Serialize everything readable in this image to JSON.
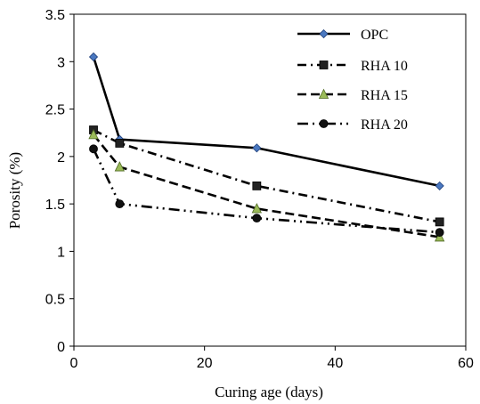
{
  "chart_data": {
    "type": "line",
    "xlabel": "Curing age (days)",
    "ylabel": "Porosity (%)",
    "xlim": [
      0,
      60
    ],
    "ylim": [
      0,
      3.5
    ],
    "x_ticks": [
      "0",
      "20",
      "40",
      "60"
    ],
    "y_ticks": [
      "0",
      "0.5",
      "1",
      "1.5",
      "2",
      "2.5",
      "3",
      "3.5"
    ],
    "grid": false,
    "legend_position": "top-right",
    "series": [
      {
        "name": "OPC",
        "x": [
          3,
          7,
          28,
          56
        ],
        "y": [
          3.05,
          2.18,
          2.09,
          1.69
        ],
        "marker": "diamond",
        "dash": "solid",
        "marker_color": "#4a78c0"
      },
      {
        "name": "RHA 10",
        "x": [
          3,
          7,
          28,
          56
        ],
        "y": [
          2.28,
          2.14,
          1.69,
          1.31
        ],
        "marker": "square",
        "dash": "dashdot",
        "marker_color": "#222222"
      },
      {
        "name": "RHA 15",
        "x": [
          3,
          7,
          28,
          56
        ],
        "y": [
          2.23,
          1.89,
          1.45,
          1.15
        ],
        "marker": "triangle",
        "dash": "dash",
        "marker_color": "#9bbb59"
      },
      {
        "name": "RHA 20",
        "x": [
          3,
          7,
          28,
          56
        ],
        "y": [
          2.08,
          1.5,
          1.35,
          1.2
        ],
        "marker": "circle",
        "dash": "dashdotdot",
        "marker_color": "#111111"
      }
    ]
  }
}
